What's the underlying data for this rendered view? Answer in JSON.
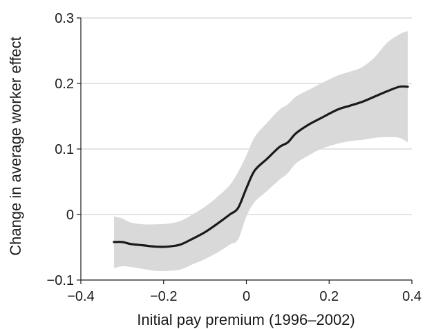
{
  "chart_data": {
    "type": "line",
    "title": "",
    "xlabel": "Initial pay premium (1996–2002)",
    "ylabel": "Change in average worker effect",
    "xlim": [
      -0.4,
      0.4
    ],
    "ylim": [
      -0.1,
      0.3
    ],
    "x_ticks": [
      -0.4,
      -0.2,
      0,
      0.2,
      0.4
    ],
    "x_tick_labels": [
      "−0.4",
      "−0.2",
      "0",
      "0.2",
      "0.4"
    ],
    "y_ticks": [
      -0.1,
      0,
      0.1,
      0.2,
      0.3
    ],
    "y_tick_labels": [
      "−0.1",
      "0",
      "0.1",
      "0.2",
      "0.3"
    ],
    "grid": "horizontal",
    "colors": {
      "line": "#1a1a1a",
      "band": "#d9d9d9",
      "grid": "#c8c8c8"
    },
    "series": [
      {
        "x": [
          -0.32,
          -0.3,
          -0.28,
          -0.25,
          -0.22,
          -0.19,
          -0.16,
          -0.13,
          -0.1,
          -0.07,
          -0.04,
          -0.02,
          0.0,
          0.02,
          0.05,
          0.08,
          0.1,
          0.12,
          0.15,
          0.18,
          0.22,
          0.25,
          0.28,
          0.31,
          0.34,
          0.37,
          0.39
        ],
        "y": [
          -0.042,
          -0.042,
          -0.045,
          -0.047,
          -0.049,
          -0.049,
          -0.046,
          -0.037,
          -0.027,
          -0.014,
          0.0,
          0.01,
          0.04,
          0.067,
          0.085,
          0.103,
          0.11,
          0.124,
          0.137,
          0.147,
          0.16,
          0.166,
          0.172,
          0.18,
          0.188,
          0.195,
          0.195
        ],
        "lower": [
          -0.082,
          -0.079,
          -0.08,
          -0.083,
          -0.086,
          -0.086,
          -0.084,
          -0.076,
          -0.068,
          -0.058,
          -0.046,
          -0.038,
          -0.003,
          0.019,
          0.036,
          0.053,
          0.063,
          0.078,
          0.09,
          0.1,
          0.108,
          0.112,
          0.114,
          0.117,
          0.118,
          0.117,
          0.11
        ],
        "upper": [
          -0.003,
          -0.006,
          -0.012,
          -0.015,
          -0.015,
          -0.014,
          -0.01,
          0.0,
          0.012,
          0.027,
          0.045,
          0.065,
          0.09,
          0.118,
          0.14,
          0.16,
          0.168,
          0.18,
          0.19,
          0.2,
          0.212,
          0.218,
          0.225,
          0.24,
          0.262,
          0.275,
          0.28
        ]
      }
    ]
  }
}
